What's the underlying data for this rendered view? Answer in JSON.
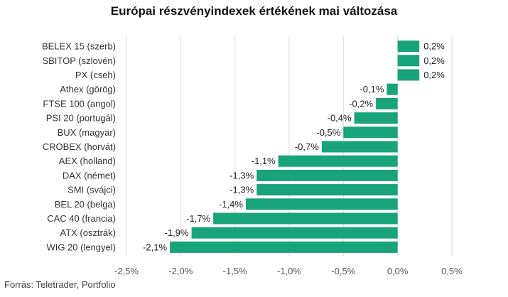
{
  "title": "Európai részvényindexek értékének mai változása",
  "source": "Forrás: Teletrader, Portfolio",
  "colors": {
    "bar": "#18a37a",
    "grid": "#dddddd",
    "text": "#333333"
  },
  "chart_data": {
    "type": "bar",
    "orientation": "horizontal",
    "title": "Európai részvényindexek értékének mai változása",
    "xlabel": "",
    "ylabel": "",
    "xlim": [
      -2.5,
      0.5
    ],
    "grid": true,
    "categories": [
      "BELEX 15 (szerb)",
      "SBITOP (szlovén)",
      "PX (cseh)",
      "Athex (görög)",
      "FTSE 100 (angol)",
      "PSI 20 (portugál)",
      "BUX (magyar)",
      "CROBEX (horvát)",
      "AEX (holland)",
      "DAX (német)",
      "SMI (svájci)",
      "BEL 20 (belga)",
      "CAC 40 (francia)",
      "ATX (osztrák)",
      "WIG 20 (lengyel)"
    ],
    "values": [
      0.2,
      0.2,
      0.2,
      -0.1,
      -0.2,
      -0.4,
      -0.5,
      -0.7,
      -1.1,
      -1.3,
      -1.3,
      -1.4,
      -1.7,
      -1.9,
      -2.1
    ],
    "value_labels": [
      "0,2%",
      "0,2%",
      "0,2%",
      "-0,1%",
      "-0,2%",
      "-0,4%",
      "-0,5%",
      "-0,7%",
      "-1,1%",
      "-1,3%",
      "-1,3%",
      "-1,4%",
      "-1,7%",
      "-1,9%",
      "-2,1%"
    ],
    "ticks": [
      -2.5,
      -2.0,
      -1.5,
      -1.0,
      -0.5,
      0.0,
      0.5
    ],
    "tick_labels": [
      "-2,5%",
      "-2,0%",
      "-1,5%",
      "-1,0%",
      "-0,5%",
      "0,0%",
      "0,5%"
    ]
  }
}
